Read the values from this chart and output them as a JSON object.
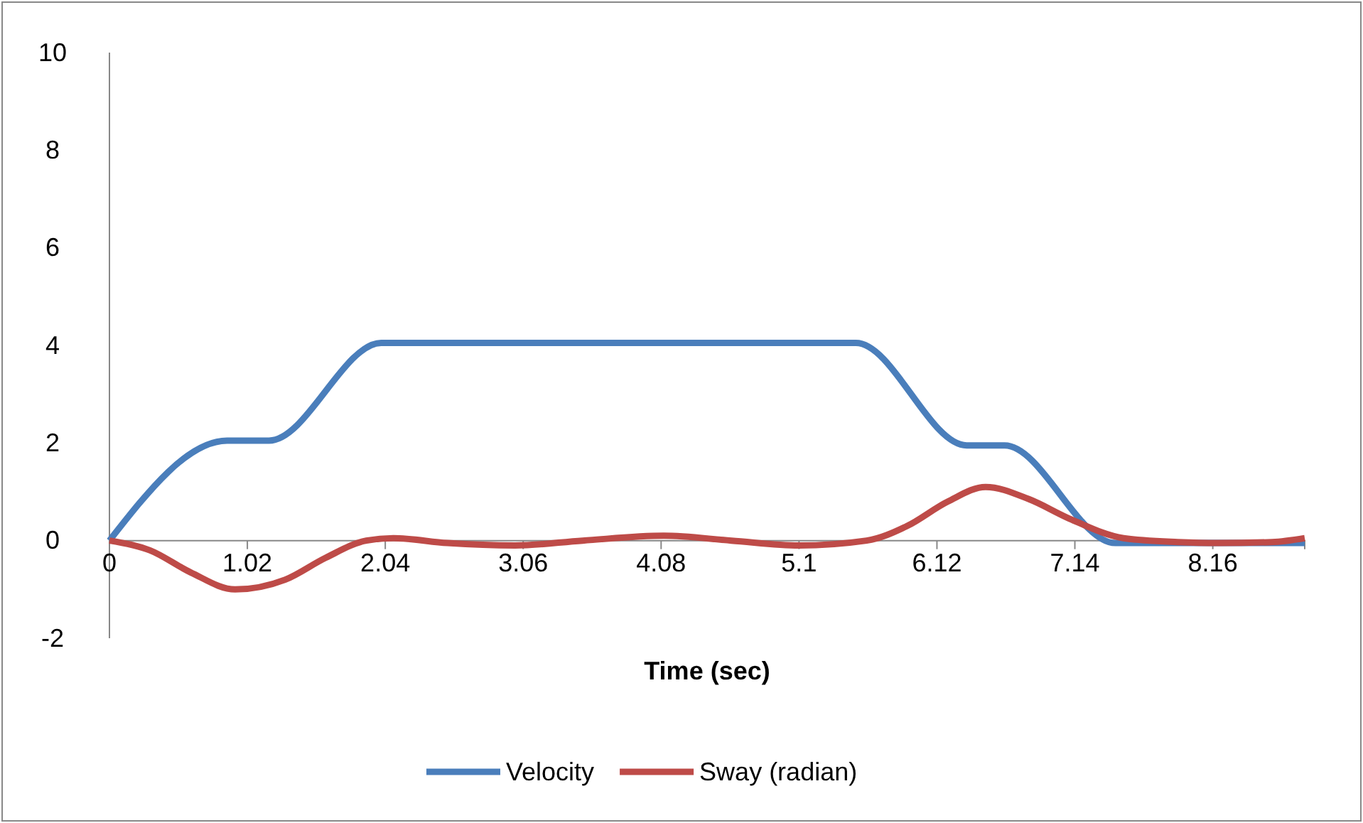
{
  "chart_data": {
    "type": "line",
    "xlabel": "Time (sec)",
    "xlim": [
      0,
      8.84
    ],
    "xticks": [
      0,
      1.02,
      2.04,
      3.06,
      4.08,
      5.1,
      6.12,
      7.14,
      8.16
    ],
    "ylim": [
      -2,
      10
    ],
    "yticks": [
      -2,
      0,
      2,
      4,
      6,
      8,
      10
    ],
    "legend": "bottom",
    "grid": false,
    "marker": "none",
    "line_style": "solid",
    "series": [
      {
        "name": "Velocity",
        "color": "#4a7ebb",
        "x": [
          0,
          0.87,
          1.18,
          2.01,
          5.52,
          6.34,
          6.62,
          7.44,
          8.84
        ],
        "values": [
          0,
          2.05,
          2.05,
          4.05,
          4.05,
          1.95,
          1.95,
          -0.05,
          -0.05
        ]
      },
      {
        "name": "Sway (radian)",
        "color": "#be4b48",
        "x": [
          0,
          0.3,
          0.6,
          0.93,
          1.3,
          1.6,
          1.9,
          2.1,
          2.5,
          3.0,
          3.5,
          4.1,
          4.6,
          5.1,
          5.6,
          5.9,
          6.2,
          6.48,
          6.8,
          7.1,
          7.5,
          7.9,
          8.2,
          8.6,
          8.84
        ],
        "values": [
          0,
          -0.2,
          -0.65,
          -1.0,
          -0.8,
          -0.35,
          0,
          0.05,
          -0.05,
          -0.1,
          0,
          0.1,
          0,
          -0.1,
          0,
          0.3,
          0.8,
          1.1,
          0.85,
          0.45,
          0.05,
          -0.03,
          -0.05,
          -0.03,
          0.05
        ]
      }
    ]
  }
}
